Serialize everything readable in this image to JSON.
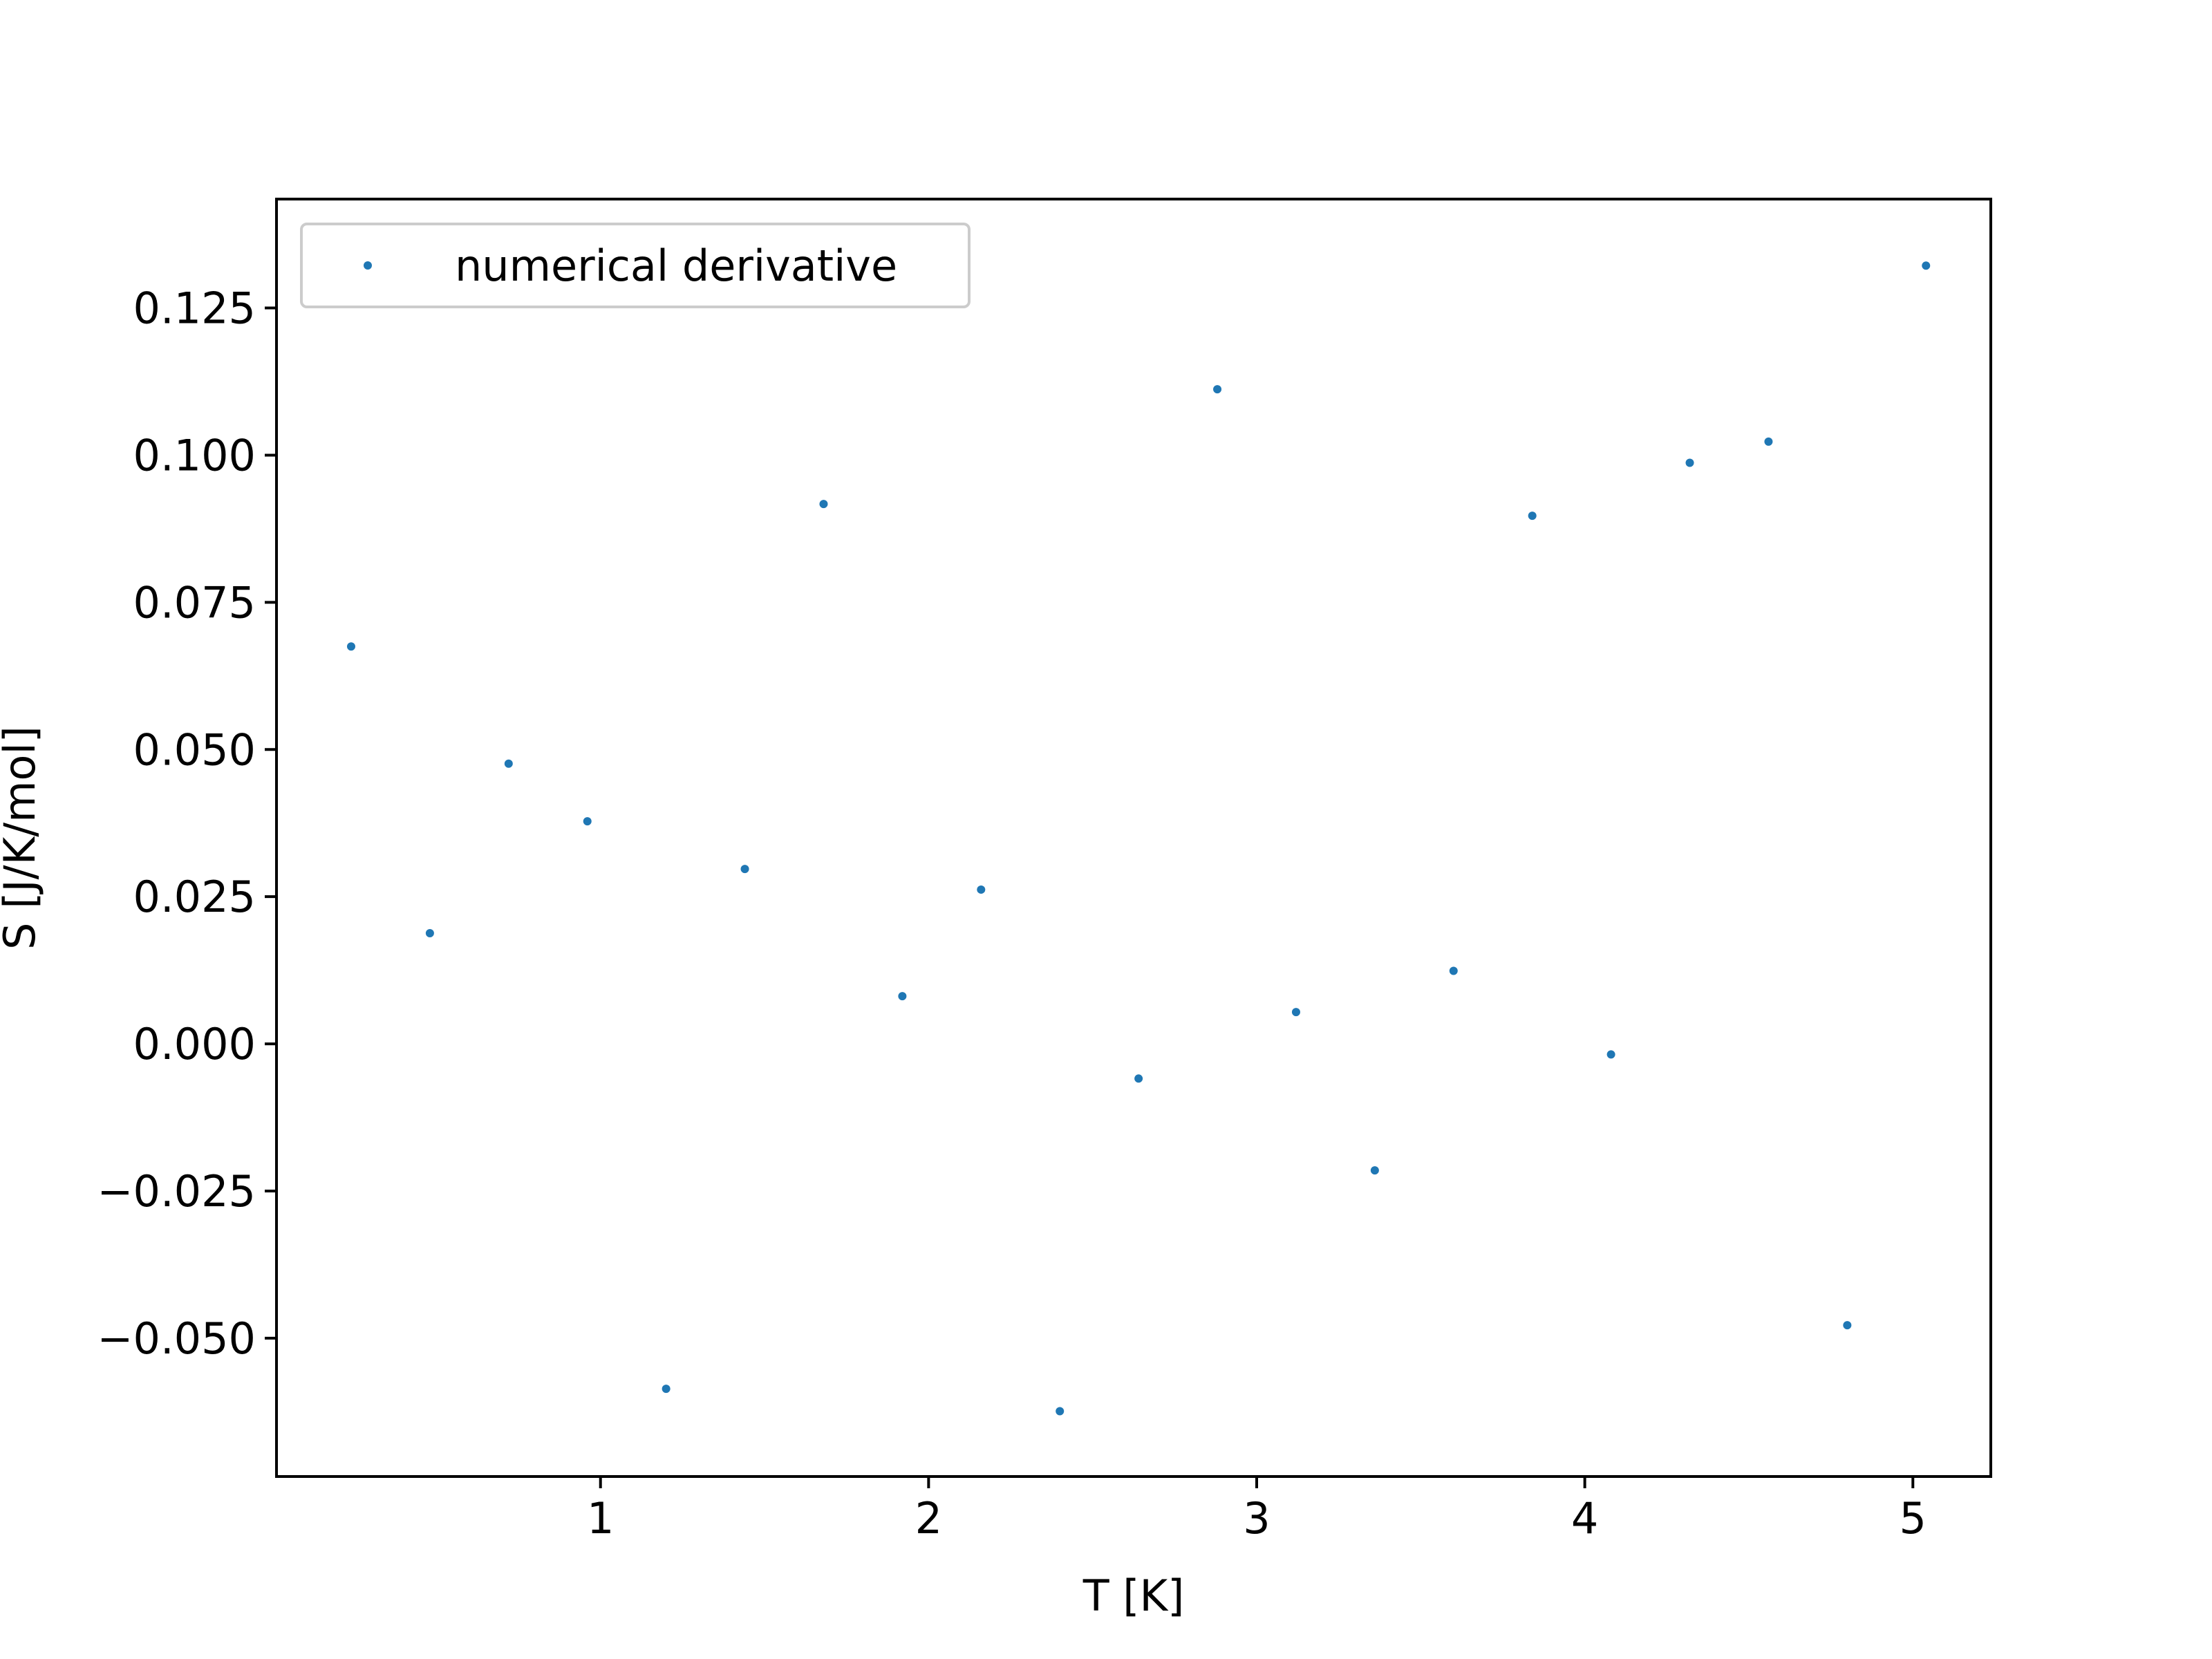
{
  "chart_data": {
    "type": "scatter",
    "xlabel": "T [K]",
    "ylabel": "S  [J/K/mol]",
    "xlim": [
      0.0125,
      5.2375
    ],
    "ylim": [
      -0.0735,
      0.1435
    ],
    "xticks": [
      {
        "value": 1,
        "label": "1"
      },
      {
        "value": 2,
        "label": "2"
      },
      {
        "value": 3,
        "label": "3"
      },
      {
        "value": 4,
        "label": "4"
      },
      {
        "value": 5,
        "label": "5"
      }
    ],
    "yticks": [
      {
        "value": -0.05,
        "label": "−0.050"
      },
      {
        "value": -0.025,
        "label": "−0.025"
      },
      {
        "value": 0.0,
        "label": "0.000"
      },
      {
        "value": 0.025,
        "label": "0.025"
      },
      {
        "value": 0.05,
        "label": "0.050"
      },
      {
        "value": 0.075,
        "label": "0.075"
      },
      {
        "value": 0.1,
        "label": "0.100"
      },
      {
        "value": 0.125,
        "label": "0.125"
      }
    ],
    "grid": false,
    "legend": {
      "position": "upper-left"
    },
    "color": "#1f77b4",
    "series": [
      {
        "name": "numerical derivative",
        "x": [
          0.24,
          0.48,
          0.72,
          0.96,
          1.2,
          1.44,
          1.68,
          1.92,
          2.16,
          2.4,
          2.64,
          2.88,
          3.12,
          3.36,
          3.6,
          3.84,
          4.08,
          4.32,
          4.56,
          4.8,
          5.04
        ],
        "y": [
          0.0675,
          0.0188,
          0.0476,
          0.0378,
          -0.0586,
          0.0297,
          0.0917,
          0.0081,
          0.0262,
          -0.0624,
          -0.0059,
          0.1112,
          0.0054,
          -0.0215,
          0.0124,
          0.0897,
          -0.0018,
          0.0987,
          0.1023,
          -0.0478,
          0.1322
        ]
      }
    ]
  }
}
